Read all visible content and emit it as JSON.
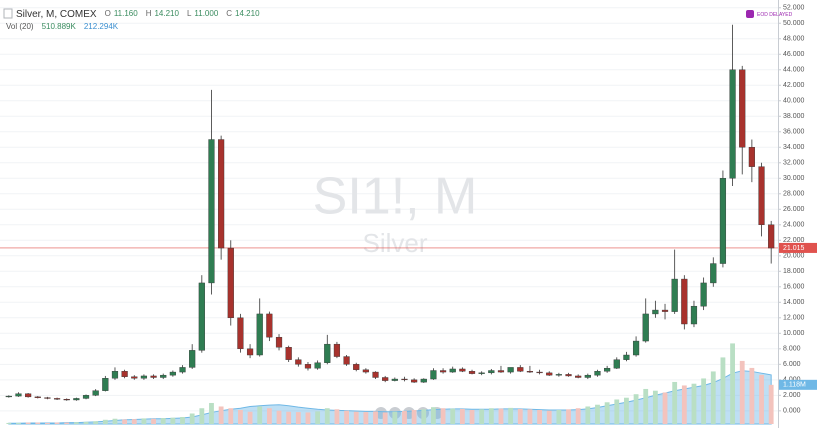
{
  "chart_data": {
    "type": "candlestick",
    "title": "SI1!, M",
    "subtitle": "Silver",
    "header": {
      "symbol": "Silver, M, COMEX",
      "ohlc": [
        {
          "key": "O",
          "value": "11.160"
        },
        {
          "key": "H",
          "value": "14.210"
        },
        {
          "key": "L",
          "value": "11.000"
        },
        {
          "key": "C",
          "value": "14.210"
        }
      ],
      "volume_name": "Vol (20)",
      "volume_values": [
        "510.889K",
        "212.294K"
      ]
    },
    "badge": "EOD DELAYED",
    "up_color": "#2f7d52",
    "down_color": "#a8322d",
    "open": [
      1.8,
      1.9,
      2.2,
      1.8,
      1.7,
      1.6,
      1.5,
      1.4,
      1.6,
      2.0,
      2.6,
      4.2,
      5.1,
      4.4,
      4.2,
      4.5,
      4.3,
      4.6,
      5.0,
      5.6,
      7.8,
      16.5,
      35.0,
      21.0,
      12.0,
      8.0,
      7.2,
      12.5,
      9.5,
      8.2,
      6.6,
      6.0,
      5.5,
      6.2,
      8.6,
      7.0,
      6.0,
      5.3,
      5.0,
      4.3,
      3.9,
      4.1,
      4.0,
      3.7,
      4.1,
      5.2,
      5.0,
      5.4,
      5.1,
      4.8,
      4.9,
      5.2,
      5.0,
      5.6,
      5.1,
      5.0,
      4.9,
      4.6,
      4.7,
      4.5,
      4.3,
      4.6,
      5.1,
      5.5,
      6.6,
      7.2,
      9.0,
      12.5,
      13.0,
      12.8,
      17.0,
      11.2,
      13.5,
      16.5,
      19.0,
      30.0,
      44.0,
      34.0,
      31.5,
      24.0
    ],
    "high": [
      2.0,
      2.4,
      2.3,
      1.9,
      1.8,
      1.7,
      1.6,
      1.7,
      2.1,
      2.8,
      4.5,
      5.6,
      5.3,
      4.6,
      4.7,
      4.7,
      4.8,
      5.2,
      5.9,
      8.6,
      17.5,
      41.4,
      35.5,
      22.0,
      12.5,
      8.6,
      14.5,
      12.8,
      9.9,
      8.4,
      6.9,
      6.3,
      6.5,
      9.8,
      8.9,
      7.2,
      6.2,
      5.5,
      5.1,
      4.5,
      4.3,
      4.4,
      4.2,
      4.2,
      5.5,
      5.5,
      5.7,
      5.6,
      5.3,
      5.1,
      5.4,
      5.8,
      5.3,
      5.9,
      5.8,
      5.3,
      5.1,
      4.9,
      4.9,
      4.7,
      4.8,
      5.3,
      5.8,
      6.9,
      7.6,
      9.6,
      14.5,
      14.2,
      13.8,
      20.8,
      17.5,
      14.2,
      17.2,
      19.8,
      31.0,
      49.8,
      44.5,
      35.0,
      32.0,
      24.5
    ],
    "low": [
      1.7,
      1.8,
      1.7,
      1.6,
      1.5,
      1.4,
      1.3,
      1.3,
      1.5,
      1.9,
      2.5,
      4.0,
      4.2,
      4.0,
      4.0,
      4.1,
      4.1,
      4.4,
      4.8,
      5.4,
      7.5,
      15.0,
      19.5,
      11.0,
      7.5,
      6.8,
      7.0,
      9.0,
      7.8,
      6.3,
      5.7,
      5.2,
      5.3,
      6.0,
      6.8,
      5.8,
      5.1,
      4.8,
      4.1,
      3.7,
      3.8,
      3.8,
      3.6,
      3.6,
      4.0,
      4.8,
      4.9,
      5.0,
      4.7,
      4.6,
      4.7,
      4.9,
      4.8,
      5.0,
      4.9,
      4.7,
      4.5,
      4.4,
      4.4,
      4.2,
      4.1,
      4.4,
      4.9,
      5.4,
      6.4,
      7.0,
      8.8,
      12.0,
      11.8,
      12.5,
      10.5,
      10.8,
      13.0,
      16.0,
      18.5,
      29.0,
      30.5,
      29.5,
      22.5,
      19.0
    ],
    "close": [
      1.9,
      2.2,
      1.8,
      1.7,
      1.6,
      1.5,
      1.4,
      1.6,
      2.0,
      2.6,
      4.2,
      5.1,
      4.4,
      4.2,
      4.5,
      4.3,
      4.6,
      5.0,
      5.6,
      7.8,
      16.5,
      35.0,
      21.0,
      12.0,
      8.0,
      7.2,
      12.5,
      9.5,
      8.2,
      6.6,
      6.0,
      5.5,
      6.2,
      8.6,
      7.0,
      6.0,
      5.3,
      5.0,
      4.3,
      3.9,
      4.1,
      4.0,
      3.7,
      4.1,
      5.2,
      5.0,
      5.4,
      5.1,
      4.8,
      4.9,
      5.2,
      5.0,
      5.6,
      5.1,
      5.0,
      4.9,
      4.6,
      4.7,
      4.5,
      4.3,
      4.6,
      5.1,
      5.5,
      6.6,
      7.2,
      9.0,
      12.5,
      13.0,
      12.8,
      17.0,
      11.2,
      13.5,
      16.5,
      19.0,
      30.0,
      44.0,
      34.0,
      31.5,
      24.0,
      21.0
    ],
    "volume": {
      "values": [
        0.03,
        0.03,
        0.04,
        0.04,
        0.03,
        0.04,
        0.04,
        0.05,
        0.06,
        0.08,
        0.12,
        0.15,
        0.13,
        0.14,
        0.16,
        0.15,
        0.17,
        0.18,
        0.2,
        0.3,
        0.45,
        0.6,
        0.5,
        0.45,
        0.4,
        0.35,
        0.5,
        0.45,
        0.38,
        0.35,
        0.34,
        0.33,
        0.36,
        0.45,
        0.42,
        0.38,
        0.35,
        0.34,
        0.36,
        0.33,
        0.35,
        0.37,
        0.4,
        0.42,
        0.48,
        0.45,
        0.44,
        0.43,
        0.4,
        0.42,
        0.45,
        0.44,
        0.46,
        0.43,
        0.42,
        0.4,
        0.38,
        0.4,
        0.42,
        0.45,
        0.5,
        0.55,
        0.62,
        0.7,
        0.75,
        0.85,
        1.0,
        0.95,
        0.9,
        1.2,
        1.1,
        1.15,
        1.3,
        1.5,
        1.9,
        2.3,
        1.8,
        1.6,
        1.4,
        1.118
      ],
      "ma": [
        0.02,
        0.02,
        0.03,
        0.03,
        0.03,
        0.03,
        0.04,
        0.04,
        0.05,
        0.06,
        0.08,
        0.1,
        0.12,
        0.13,
        0.14,
        0.15,
        0.15,
        0.16,
        0.17,
        0.2,
        0.26,
        0.33,
        0.38,
        0.42,
        0.45,
        0.5,
        0.52,
        0.54,
        0.55,
        0.52,
        0.48,
        0.45,
        0.42,
        0.4,
        0.39,
        0.38,
        0.37,
        0.36,
        0.36,
        0.35,
        0.35,
        0.36,
        0.37,
        0.39,
        0.41,
        0.42,
        0.43,
        0.43,
        0.42,
        0.42,
        0.42,
        0.43,
        0.43,
        0.43,
        0.42,
        0.41,
        0.4,
        0.4,
        0.4,
        0.41,
        0.43,
        0.47,
        0.52,
        0.57,
        0.62,
        0.68,
        0.75,
        0.82,
        0.88,
        0.95,
        1.0,
        1.05,
        1.1,
        1.18,
        1.3,
        1.45,
        1.52,
        1.5,
        1.45,
        1.4
      ],
      "up_color": "#b9dfc4",
      "down_color": "#f3c3bd",
      "ma_color": "#6fb8e6",
      "lim": [
        0,
        12.1
      ],
      "last": {
        "value": 1.118,
        "label": "1.118M"
      }
    },
    "last_price": 21.015,
    "last_price_color": "#e0524e",
    "ylim": [
      -1.7,
      53
    ],
    "yticks": [
      {
        "value": 0,
        "label": "0.000"
      },
      {
        "value": 2,
        "label": "2.000"
      },
      {
        "value": 4,
        "label": "4.000"
      },
      {
        "value": 6,
        "label": "6.000"
      },
      {
        "value": 8,
        "label": "8.000"
      },
      {
        "value": 10,
        "label": "10.000"
      },
      {
        "value": 12,
        "label": "12.000"
      },
      {
        "value": 14,
        "label": "14.000"
      },
      {
        "value": 16,
        "label": "16.000"
      },
      {
        "value": 18,
        "label": "18.000"
      },
      {
        "value": 20,
        "label": "20.000"
      },
      {
        "value": 22,
        "label": "22.000"
      },
      {
        "value": 24,
        "label": "24.000"
      },
      {
        "value": 26,
        "label": "26.000"
      },
      {
        "value": 28,
        "label": "28.000"
      },
      {
        "value": 30,
        "label": "30.000"
      },
      {
        "value": 32,
        "label": "32.000"
      },
      {
        "value": 34,
        "label": "34.000"
      },
      {
        "value": 36,
        "label": "36.000"
      },
      {
        "value": 38,
        "label": "38.000"
      },
      {
        "value": 40,
        "label": "40.000"
      },
      {
        "value": 42,
        "label": "42.000"
      },
      {
        "value": 44,
        "label": "44.000"
      },
      {
        "value": 46,
        "label": "46.000"
      },
      {
        "value": 48,
        "label": "48.000"
      },
      {
        "value": 50,
        "label": "50.000"
      },
      {
        "value": 52,
        "label": "52.000"
      }
    ],
    "grid": true
  }
}
